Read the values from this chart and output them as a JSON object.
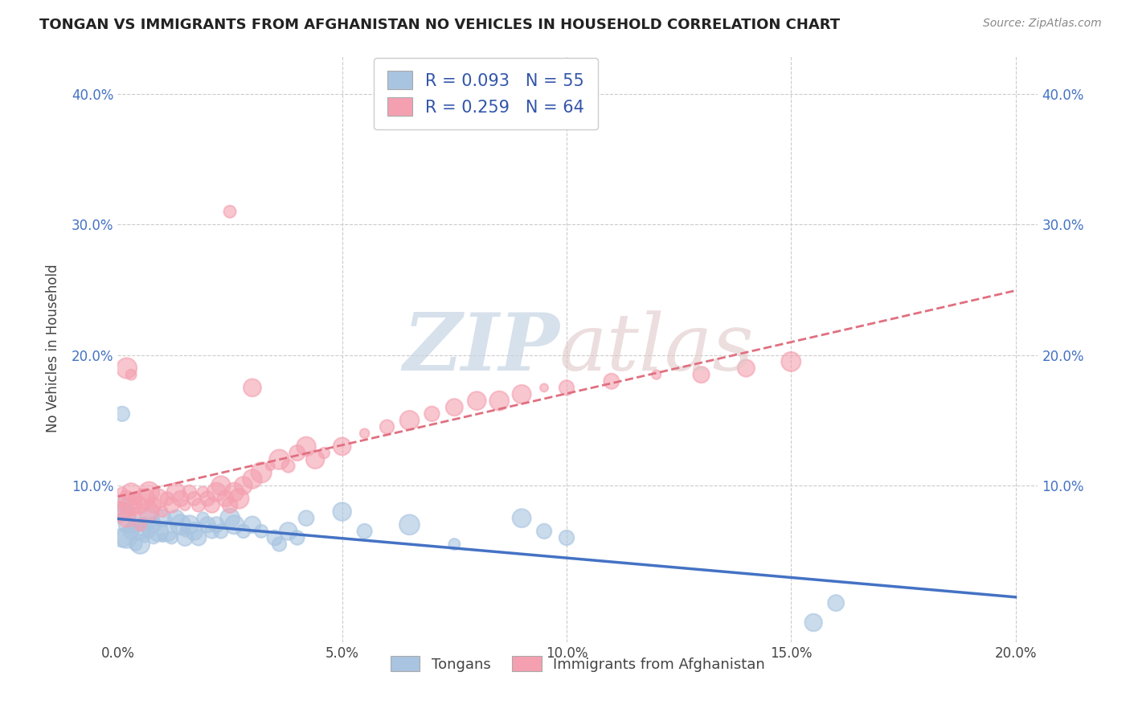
{
  "title": "TONGAN VS IMMIGRANTS FROM AFGHANISTAN NO VEHICLES IN HOUSEHOLD CORRELATION CHART",
  "source": "Source: ZipAtlas.com",
  "ylabel": "No Vehicles in Household",
  "xlim": [
    0.0,
    0.205
  ],
  "ylim": [
    -0.02,
    0.43
  ],
  "xtick_labels": [
    "0.0%",
    "5.0%",
    "10.0%",
    "15.0%",
    "20.0%"
  ],
  "xtick_vals": [
    0.0,
    0.05,
    0.1,
    0.15,
    0.2
  ],
  "ytick_labels": [
    "10.0%",
    "20.0%",
    "30.0%",
    "40.0%"
  ],
  "ytick_vals": [
    0.1,
    0.2,
    0.3,
    0.4
  ],
  "legend_label1": "Tongans",
  "legend_label2": "Immigrants from Afghanistan",
  "R1": 0.093,
  "N1": 55,
  "R2": 0.259,
  "N2": 64,
  "color1": "#a8c4e0",
  "color2": "#f4a0b0",
  "line_color1": "#4472c4",
  "line_color2": "#e07080",
  "tongan_x": [
    0.0005,
    0.001,
    0.001,
    0.0015,
    0.002,
    0.002,
    0.003,
    0.003,
    0.004,
    0.004,
    0.005,
    0.005,
    0.006,
    0.006,
    0.007,
    0.007,
    0.008,
    0.008,
    0.009,
    0.01,
    0.01,
    0.011,
    0.012,
    0.013,
    0.014,
    0.015,
    0.015,
    0.016,
    0.017,
    0.018,
    0.019,
    0.02,
    0.021,
    0.022,
    0.023,
    0.025,
    0.026,
    0.028,
    0.03,
    0.032,
    0.035,
    0.036,
    0.038,
    0.04,
    0.042,
    0.05,
    0.055,
    0.065,
    0.075,
    0.09,
    0.095,
    0.1,
    0.155,
    0.16,
    0.001
  ],
  "tongan_y": [
    0.075,
    0.06,
    0.085,
    0.08,
    0.06,
    0.07,
    0.065,
    0.08,
    0.055,
    0.07,
    0.065,
    0.055,
    0.07,
    0.06,
    0.065,
    0.075,
    0.06,
    0.07,
    0.065,
    0.06,
    0.075,
    0.065,
    0.06,
    0.075,
    0.07,
    0.065,
    0.06,
    0.07,
    0.065,
    0.06,
    0.075,
    0.07,
    0.065,
    0.07,
    0.065,
    0.075,
    0.07,
    0.065,
    0.07,
    0.065,
    0.06,
    0.055,
    0.065,
    0.06,
    0.075,
    0.08,
    0.065,
    0.07,
    0.055,
    0.075,
    0.065,
    0.06,
    -0.005,
    0.01,
    0.155
  ],
  "afghan_x": [
    0.0005,
    0.001,
    0.001,
    0.002,
    0.002,
    0.003,
    0.003,
    0.004,
    0.004,
    0.005,
    0.005,
    0.006,
    0.007,
    0.007,
    0.008,
    0.009,
    0.01,
    0.011,
    0.012,
    0.013,
    0.014,
    0.015,
    0.016,
    0.017,
    0.018,
    0.019,
    0.02,
    0.021,
    0.022,
    0.023,
    0.024,
    0.025,
    0.026,
    0.027,
    0.028,
    0.03,
    0.032,
    0.034,
    0.036,
    0.038,
    0.04,
    0.042,
    0.044,
    0.046,
    0.05,
    0.055,
    0.06,
    0.065,
    0.07,
    0.075,
    0.08,
    0.085,
    0.09,
    0.095,
    0.1,
    0.11,
    0.12,
    0.13,
    0.14,
    0.15,
    0.002,
    0.003,
    0.025,
    0.03
  ],
  "afghan_y": [
    0.085,
    0.095,
    0.08,
    0.09,
    0.075,
    0.085,
    0.095,
    0.08,
    0.09,
    0.085,
    0.07,
    0.09,
    0.095,
    0.08,
    0.085,
    0.09,
    0.08,
    0.09,
    0.085,
    0.095,
    0.09,
    0.085,
    0.095,
    0.09,
    0.085,
    0.095,
    0.09,
    0.085,
    0.095,
    0.1,
    0.09,
    0.085,
    0.095,
    0.09,
    0.1,
    0.105,
    0.11,
    0.115,
    0.12,
    0.115,
    0.125,
    0.13,
    0.12,
    0.125,
    0.13,
    0.14,
    0.145,
    0.15,
    0.155,
    0.16,
    0.165,
    0.165,
    0.17,
    0.175,
    0.175,
    0.18,
    0.185,
    0.185,
    0.19,
    0.195,
    0.19,
    0.185,
    0.31,
    0.175
  ]
}
